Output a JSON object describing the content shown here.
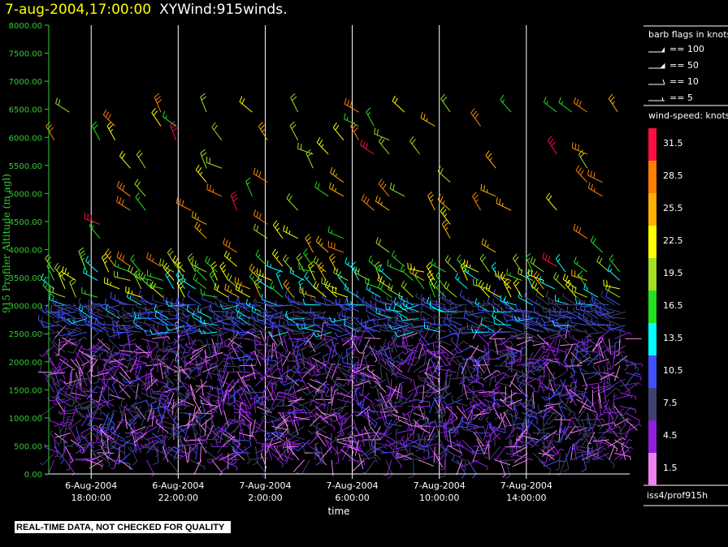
{
  "header": {
    "timestamp": "7-aug-2004,17:00:00",
    "title": "XYWind:915winds."
  },
  "colors": {
    "axis": "#33cc33",
    "ylabel": "#33cc33",
    "grid": "#ffffff",
    "background": "#000000"
  },
  "side": {
    "barb_title": "barb flags in knots",
    "barbs": [
      {
        "icon": "flag-barb-icon",
        "label": "== 100"
      },
      {
        "icon": "pennant-barb-icon",
        "label": "== 50"
      },
      {
        "icon": "full-barb-icon",
        "label": "== 10"
      },
      {
        "icon": "half-barb-icon",
        "label": "== 5"
      }
    ],
    "colorbar_title": "wind-speed: knots",
    "colorbar": [
      {
        "value": "31.5",
        "color": "#ff1040"
      },
      {
        "value": "28.5",
        "color": "#ff8000"
      },
      {
        "value": "25.5",
        "color": "#ffb000"
      },
      {
        "value": "22.5",
        "color": "#ffff00"
      },
      {
        "value": "19.5",
        "color": "#a0e020"
      },
      {
        "value": "16.5",
        "color": "#20e020"
      },
      {
        "value": "13.5",
        "color": "#00ffff"
      },
      {
        "value": "10.5",
        "color": "#4050ff"
      },
      {
        "value": "7.5",
        "color": "#404070"
      },
      {
        "value": "4.5",
        "color": "#9020e0"
      },
      {
        "value": "1.5",
        "color": "#ee80ee"
      }
    ],
    "source": "iss4/prof915h"
  },
  "footer": {
    "qc_notice": "REAL-TIME DATA, NOT CHECKED FOR QUALITY"
  },
  "chart_data": {
    "type": "scatter",
    "marker": "wind barbs",
    "ylabel": "915 Profiler Altitude (m agl)",
    "xlabel": "time",
    "ylim": [
      0,
      8000
    ],
    "yticks": [
      "0.00",
      "500.00",
      "1000.00",
      "1500.00",
      "2000.00",
      "2500.00",
      "3000.00",
      "3500.00",
      "4000.00",
      "4500.00",
      "5000.00",
      "5500.00",
      "6000.00",
      "6500.00",
      "7000.00",
      "7500.00",
      "8000.00"
    ],
    "xlim_hours": [
      -1.95,
      24.75
    ],
    "xticks": [
      {
        "hour": 0,
        "line1": "6-Aug-2004",
        "line2": "18:00:00"
      },
      {
        "hour": 4,
        "line1": "6-Aug-2004",
        "line2": "22:00:00"
      },
      {
        "hour": 8,
        "line1": "7-Aug-2004",
        "line2": "2:00:00"
      },
      {
        "hour": 12,
        "line1": "7-Aug-2004",
        "line2": "6:00:00"
      },
      {
        "hour": 16,
        "line1": "7-Aug-2004",
        "line2": "10:00:00"
      },
      {
        "hour": 20,
        "line1": "7-Aug-2004",
        "line2": "14:00:00"
      }
    ],
    "grid": "vertical lines at major ticks",
    "approx_data_summary": [
      {
        "altitude_range_m": [
          250,
          3100
        ],
        "speed_knots": "1-11",
        "note": "dense barbs every ~100 m across all times"
      },
      {
        "altitude_range_m": [
          3100,
          3600
        ],
        "speed_knots": "13-25"
      },
      {
        "altitude_range_m": [
          3600,
          6600
        ],
        "speed_knots": "16-31",
        "note": "sparse upper-level barbs"
      }
    ]
  }
}
